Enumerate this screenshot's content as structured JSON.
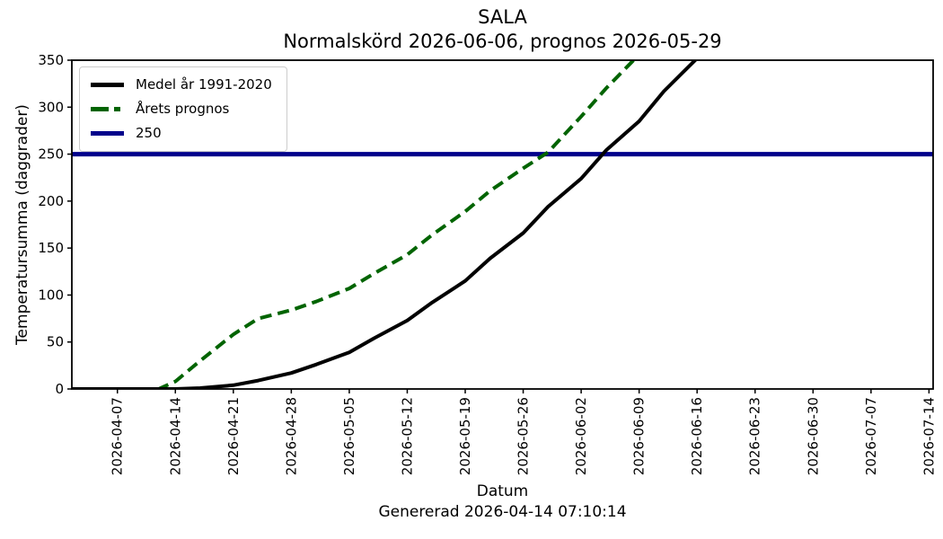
{
  "chart_data": {
    "type": "line",
    "title_lines": [
      "SALA",
      "Normalskörd 2026-06-06, prognos 2026-05-29"
    ],
    "title": "SALA — Normalskörd 2026-06-06, prognos 2026-05-29",
    "xlabel": "Datum",
    "ylabel": "Temperatursumma (daggrader)",
    "footer": "Genererad 2026-04-14 07:10:14",
    "x_range": [
      "2026-04-01",
      "2026-07-15"
    ],
    "ylim": [
      0,
      350
    ],
    "yticks": [
      0,
      50,
      100,
      150,
      200,
      250,
      300,
      350
    ],
    "xticks": [
      "2026-04-07",
      "2026-04-14",
      "2026-04-21",
      "2026-04-28",
      "2026-05-05",
      "2026-05-12",
      "2026-05-19",
      "2026-05-26",
      "2026-06-02",
      "2026-06-09",
      "2026-06-16",
      "2026-06-23",
      "2026-06-30",
      "2026-07-07",
      "2026-07-14"
    ],
    "grid": false,
    "legend_position": "upper left",
    "threshold_value": 250,
    "series": [
      {
        "name": "Medel år 1991-2020",
        "color": "#000000",
        "style": "solid",
        "points": [
          [
            "2026-04-01",
            0
          ],
          [
            "2026-04-14",
            0
          ],
          [
            "2026-04-17",
            1
          ],
          [
            "2026-04-21",
            4
          ],
          [
            "2026-04-24",
            9
          ],
          [
            "2026-04-28",
            17
          ],
          [
            "2026-05-01",
            26
          ],
          [
            "2026-05-05",
            39
          ],
          [
            "2026-05-08",
            54
          ],
          [
            "2026-05-12",
            73
          ],
          [
            "2026-05-15",
            92
          ],
          [
            "2026-05-19",
            115
          ],
          [
            "2026-05-22",
            139
          ],
          [
            "2026-05-26",
            166
          ],
          [
            "2026-05-29",
            194
          ],
          [
            "2026-06-02",
            224
          ],
          [
            "2026-06-05",
            254
          ],
          [
            "2026-06-09",
            285
          ],
          [
            "2026-06-12",
            317
          ],
          [
            "2026-06-16",
            352
          ]
        ]
      },
      {
        "name": "Årets prognos",
        "color": "#006400",
        "style": "dashed",
        "points": [
          [
            "2026-04-01",
            0
          ],
          [
            "2026-04-12",
            0
          ],
          [
            "2026-04-14",
            8
          ],
          [
            "2026-04-17",
            30
          ],
          [
            "2026-04-21",
            58
          ],
          [
            "2026-04-24",
            75
          ],
          [
            "2026-04-28",
            84
          ],
          [
            "2026-05-01",
            93
          ],
          [
            "2026-05-05",
            107
          ],
          [
            "2026-05-08",
            123
          ],
          [
            "2026-05-12",
            143
          ],
          [
            "2026-05-15",
            164
          ],
          [
            "2026-05-19",
            189
          ],
          [
            "2026-05-22",
            211
          ],
          [
            "2026-05-26",
            235
          ],
          [
            "2026-05-29",
            252
          ],
          [
            "2026-06-02",
            290
          ],
          [
            "2026-06-05",
            320
          ],
          [
            "2026-06-09",
            356
          ]
        ]
      },
      {
        "name": "250",
        "color": "#00008b",
        "style": "solid",
        "points": [
          [
            "2026-04-01",
            250
          ],
          [
            "2026-07-15",
            250
          ]
        ]
      }
    ]
  }
}
